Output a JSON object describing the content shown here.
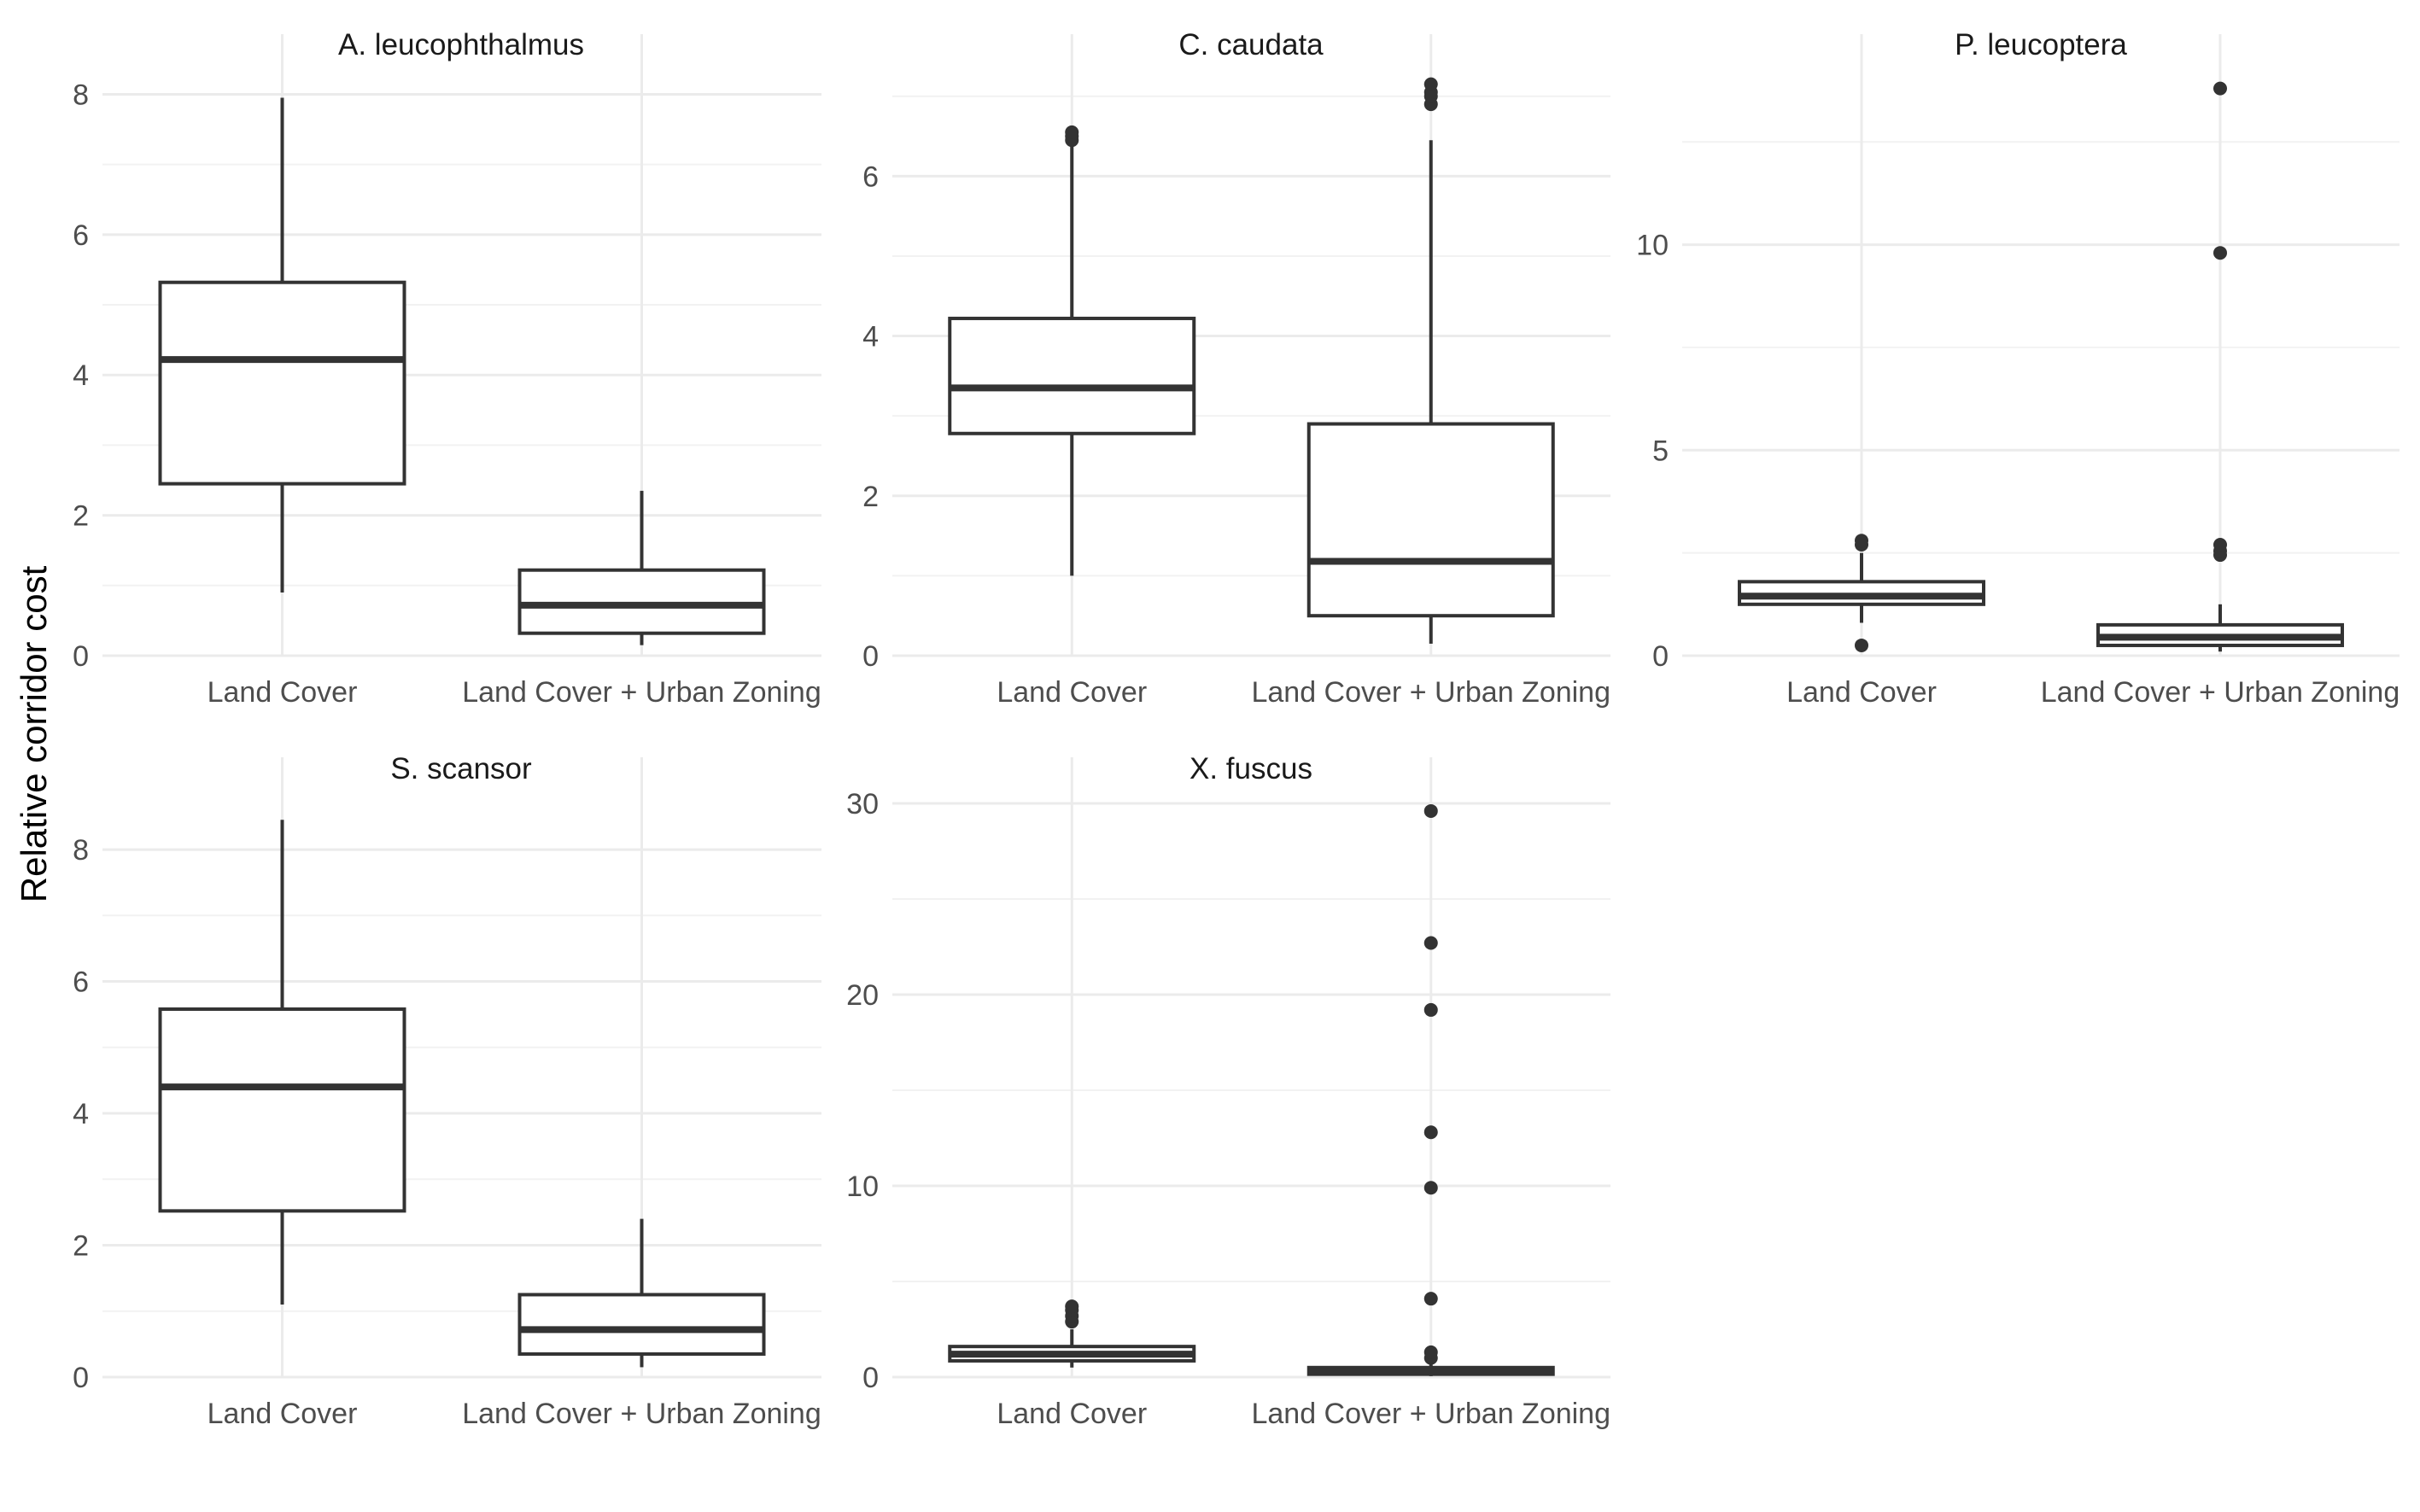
{
  "chart_data": {
    "type": "boxplot",
    "ylabel": "Relative corridor cost",
    "grid": true,
    "facets": [
      {
        "title": "A. leucophthalmus",
        "categories": [
          "Land Cover",
          "Land Cover + Urban Zoning"
        ],
        "ylim": [
          0,
          8.2
        ],
        "yticks": [
          0,
          2,
          4,
          6,
          8
        ],
        "boxes": [
          {
            "min": 0.9,
            "q1": 2.45,
            "median": 4.22,
            "q3": 5.32,
            "max": 7.95,
            "outliers": []
          },
          {
            "min": 0.15,
            "q1": 0.32,
            "median": 0.72,
            "q3": 1.22,
            "max": 2.35,
            "outliers": []
          }
        ]
      },
      {
        "title": "C. caudata",
        "categories": [
          "Land Cover",
          "Land Cover + Urban Zoning"
        ],
        "ylim": [
          0,
          7.2
        ],
        "yticks": [
          0,
          2,
          4,
          6
        ],
        "boxes": [
          {
            "min": 1.0,
            "q1": 2.78,
            "median": 3.35,
            "q3": 4.22,
            "max": 6.38,
            "outliers": [
              6.45,
              6.5,
              6.55
            ]
          },
          {
            "min": 0.15,
            "q1": 0.5,
            "median": 1.18,
            "q3": 2.9,
            "max": 6.45,
            "outliers": [
              6.9,
              7.0,
              7.05,
              7.15
            ]
          }
        ]
      },
      {
        "title": "P. leucoptera",
        "categories": [
          "Land Cover",
          "Land Cover + Urban Zoning"
        ],
        "ylim": [
          0,
          14
        ],
        "yticks": [
          0,
          5,
          10
        ],
        "boxes": [
          {
            "min": 0.8,
            "q1": 1.25,
            "median": 1.45,
            "q3": 1.8,
            "max": 2.5,
            "outliers": [
              0.25,
              2.7,
              2.8
            ]
          },
          {
            "min": 0.1,
            "q1": 0.25,
            "median": 0.45,
            "q3": 0.75,
            "max": 1.25,
            "outliers": [
              2.45,
              2.55,
              2.7,
              9.8,
              13.8
            ]
          }
        ]
      },
      {
        "title": "S. scansor",
        "categories": [
          "Land Cover",
          "Land Cover + Urban Zoning"
        ],
        "ylim": [
          0,
          8.7
        ],
        "yticks": [
          0,
          2,
          4,
          6,
          8
        ],
        "boxes": [
          {
            "min": 1.1,
            "q1": 2.52,
            "median": 4.4,
            "q3": 5.58,
            "max": 8.45,
            "outliers": []
          },
          {
            "min": 0.15,
            "q1": 0.35,
            "median": 0.72,
            "q3": 1.25,
            "max": 2.4,
            "outliers": []
          }
        ]
      },
      {
        "title": "X. fuscus",
        "categories": [
          "Land Cover",
          "Land Cover + Urban Zoning"
        ],
        "ylim": [
          0,
          30
        ],
        "yticks": [
          0,
          10,
          20,
          30
        ],
        "boxes": [
          {
            "min": 0.5,
            "q1": 0.85,
            "median": 1.2,
            "q3": 1.6,
            "max": 2.5,
            "outliers": [
              2.9,
              3.2,
              3.5,
              3.7
            ]
          },
          {
            "min": 0.05,
            "q1": 0.15,
            "median": 0.3,
            "q3": 0.5,
            "max": 0.8,
            "outliers": [
              1.0,
              1.3,
              4.1,
              9.9,
              12.8,
              19.2,
              22.7,
              29.6
            ]
          }
        ]
      }
    ]
  }
}
